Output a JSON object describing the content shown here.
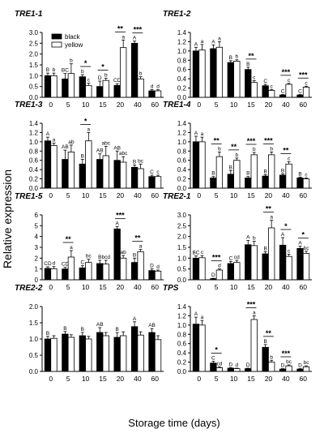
{
  "figure": {
    "ylabel": "Relative expression",
    "xlabel": "Storage time (days)",
    "legend": {
      "black": "black",
      "yellow": "yellow"
    }
  },
  "colors": {
    "black": "#000000",
    "yellow": "#ffffff",
    "axis": "#000000"
  },
  "chart_data": [
    {
      "type": "bar",
      "title": "TRE1-1",
      "categories": [
        "0",
        "5",
        "10",
        "15",
        "20",
        "40",
        "60"
      ],
      "ylim": [
        0,
        3.0
      ],
      "yticks": [
        "0.0",
        "0.5",
        "1.0",
        "1.5",
        "2.0",
        "2.5",
        "3.0"
      ],
      "series": [
        {
          "name": "black",
          "values": [
            1.0,
            0.85,
            0.95,
            0.5,
            0.55,
            2.5,
            0.3
          ],
          "errors": [
            0.12,
            0.25,
            0.1,
            0.25,
            0.08,
            0.1,
            0.05
          ],
          "letters": [
            "B",
            "BC",
            "b",
            "D",
            "CD",
            "A",
            "d"
          ]
        },
        {
          "name": "yellow",
          "values": [
            1.0,
            1.1,
            0.55,
            0.78,
            2.3,
            0.85,
            0.3
          ],
          "errors": [
            0.12,
            0.45,
            0.1,
            0.1,
            0.35,
            0.1,
            0.05
          ],
          "letters": [
            "b",
            "b",
            "c",
            "b",
            "a",
            "b",
            "d"
          ]
        }
      ],
      "stars": [
        "",
        "",
        "*",
        "*",
        "**",
        "***",
        ""
      ]
    },
    {
      "type": "bar",
      "title": "TRE1-2",
      "categories": [
        "0",
        "5",
        "10",
        "15",
        "20",
        "40",
        "60"
      ],
      "ylim": [
        0,
        1.4
      ],
      "yticks": [
        "0.0",
        "0.2",
        "0.4",
        "0.6",
        "0.8",
        "1.0",
        "1.2",
        "1.4"
      ],
      "series": [
        {
          "name": "black",
          "values": [
            1.0,
            1.05,
            0.75,
            0.6,
            0.25,
            0.05,
            0.05
          ],
          "errors": [
            0.08,
            0.08,
            0.04,
            0.05,
            0.03,
            0.01,
            0.01
          ],
          "letters": [
            "A",
            "A",
            "B",
            "B",
            "C",
            "C",
            "C"
          ]
        },
        {
          "name": "yellow",
          "values": [
            1.02,
            1.08,
            0.78,
            0.32,
            0.15,
            0.28,
            0.22
          ],
          "errors": [
            0.12,
            0.12,
            0.03,
            0.04,
            0.02,
            0.02,
            0.02
          ],
          "letters": [
            "a",
            "a",
            "b",
            "c",
            "c",
            "c",
            "c"
          ]
        }
      ],
      "stars": [
        "",
        "",
        "",
        "**",
        "",
        "***",
        "***"
      ]
    },
    {
      "type": "bar",
      "title": "TRE1-3",
      "categories": [
        "0",
        "5",
        "10",
        "15",
        "20",
        "40",
        "60"
      ],
      "ylim": [
        0,
        1.4
      ],
      "yticks": [
        "0.0",
        "0.2",
        "0.4",
        "0.6",
        "0.8",
        "1.0",
        "1.2",
        "1.4"
      ],
      "series": [
        {
          "name": "black",
          "values": [
            1.02,
            0.62,
            0.52,
            0.62,
            0.6,
            0.45,
            0.25
          ],
          "errors": [
            0.08,
            0.2,
            0.1,
            0.12,
            0.2,
            0.05,
            0.03
          ],
          "letters": [
            "A",
            "AB",
            "B",
            "AB",
            "AB",
            "B",
            "C"
          ]
        },
        {
          "name": "yellow",
          "values": [
            0.92,
            0.78,
            1.02,
            0.7,
            0.56,
            0.42,
            0.25
          ],
          "errors": [
            0.05,
            0.15,
            0.18,
            0.2,
            0.12,
            0.1,
            0.03
          ],
          "letters": [
            "a",
            "ab",
            "a",
            "abc",
            "abc",
            "bc",
            "c"
          ]
        }
      ],
      "stars": [
        "",
        "",
        "*",
        "",
        "",
        "",
        ""
      ]
    },
    {
      "type": "bar",
      "title": "TRE1-4",
      "categories": [
        "0",
        "5",
        "10",
        "15",
        "20",
        "40",
        "60"
      ],
      "ylim": [
        0,
        1.4
      ],
      "yticks": [
        "0.0",
        "0.2",
        "0.4",
        "0.6",
        "0.8",
        "1.0",
        "1.2",
        "1.4"
      ],
      "series": [
        {
          "name": "black",
          "values": [
            1.0,
            0.22,
            0.3,
            0.22,
            0.26,
            0.28,
            0.22
          ],
          "errors": [
            0.12,
            0.03,
            0.08,
            0.03,
            0.03,
            0.03,
            0.02
          ],
          "letters": [
            "A",
            "B",
            "B",
            "B",
            "B",
            "B",
            "B"
          ]
        },
        {
          "name": "yellow",
          "values": [
            1.0,
            0.68,
            0.6,
            0.72,
            0.72,
            0.52,
            0.2
          ],
          "errors": [
            0.1,
            0.1,
            0.05,
            0.05,
            0.06,
            0.05,
            0.02
          ],
          "letters": [
            "a",
            "b",
            "b",
            "b",
            "b",
            "c",
            "c"
          ]
        }
      ],
      "stars": [
        "",
        "**",
        "**",
        "***",
        "***",
        "**",
        ""
      ]
    },
    {
      "type": "bar",
      "title": "TRE1-5",
      "categories": [
        "0",
        "5",
        "10",
        "15",
        "20",
        "40",
        "60"
      ],
      "ylim": [
        0,
        6
      ],
      "yticks": [
        "0",
        "1",
        "2",
        "3",
        "4",
        "5",
        "6"
      ],
      "series": [
        {
          "name": "black",
          "values": [
            1.05,
            1.0,
            1.1,
            1.5,
            4.7,
            1.6,
            0.85
          ],
          "errors": [
            0.15,
            0.15,
            0.2,
            0.3,
            0.2,
            0.4,
            0.15
          ],
          "letters": [
            "CD",
            "CD",
            "C",
            "B",
            "A",
            "B",
            "D"
          ]
        },
        {
          "name": "yellow",
          "values": [
            1.02,
            2.1,
            1.6,
            1.45,
            2.0,
            2.6,
            0.8
          ],
          "errors": [
            0.2,
            0.6,
            0.3,
            0.35,
            0.25,
            0.2,
            0.1
          ],
          "letters": [
            "d",
            "a",
            "bc",
            "bcd",
            "ab",
            "a",
            "d"
          ]
        }
      ],
      "stars": [
        "",
        "**",
        "",
        "",
        "***",
        "**",
        ""
      ]
    },
    {
      "type": "bar",
      "title": "TRE2-1",
      "categories": [
        "0",
        "5",
        "10",
        "15",
        "20",
        "40",
        "60"
      ],
      "ylim": [
        0,
        3.0
      ],
      "yticks": [
        "0.0",
        "0.5",
        "1.0",
        "1.5",
        "2.0",
        "2.5",
        "3.0"
      ],
      "series": [
        {
          "name": "black",
          "values": [
            1.0,
            0.05,
            0.75,
            1.62,
            1.2,
            1.6,
            1.45
          ],
          "errors": [
            0.1,
            0.02,
            0.1,
            0.2,
            0.1,
            0.35,
            0.1
          ],
          "letters": [
            "BC",
            "D",
            "C",
            "A",
            "B",
            "A",
            "A"
          ]
        },
        {
          "name": "yellow",
          "values": [
            1.02,
            0.45,
            0.8,
            1.58,
            2.4,
            1.08,
            1.22
          ],
          "errors": [
            0.1,
            0.05,
            0.1,
            0.2,
            0.35,
            0.1,
            0.1
          ],
          "letters": [
            "c",
            "d",
            "cd",
            "b",
            "a",
            "c",
            "bc"
          ]
        }
      ],
      "stars": [
        "",
        "***",
        "",
        "",
        "**",
        "*",
        "*"
      ]
    },
    {
      "type": "bar",
      "title": "TRE2-2",
      "categories": [
        "0",
        "5",
        "10",
        "15",
        "20",
        "40",
        "60"
      ],
      "ylim": [
        0,
        2.0
      ],
      "yticks": [
        "0.0",
        "0.5",
        "1.0",
        "1.5",
        "2.0"
      ],
      "series": [
        {
          "name": "black",
          "values": [
            1.0,
            1.15,
            1.1,
            1.2,
            1.05,
            1.38,
            1.2
          ],
          "errors": [
            0.08,
            0.08,
            0.1,
            0.15,
            0.15,
            0.15,
            0.12
          ],
          "letters": [
            "B",
            "B",
            "B",
            "AB",
            "B",
            "A",
            "AB"
          ]
        },
        {
          "name": "yellow",
          "values": [
            1.02,
            1.05,
            1.0,
            1.1,
            1.1,
            1.12,
            0.98
          ],
          "errors": [
            0.08,
            0.08,
            0.08,
            0.1,
            0.12,
            0.1,
            0.12
          ],
          "letters": [
            "",
            "",
            "",
            "",
            "",
            "",
            ""
          ]
        }
      ],
      "stars": [
        "",
        "",
        "",
        "",
        "",
        "",
        ""
      ]
    },
    {
      "type": "bar",
      "title": "TPS",
      "categories": [
        "0",
        "5",
        "10",
        "15",
        "20",
        "40",
        "60"
      ],
      "ylim": [
        0,
        1.4
      ],
      "yticks": [
        "0.0",
        "0.2",
        "0.4",
        "0.6",
        "0.8",
        "1.0",
        "1.2",
        "1.4"
      ],
      "series": [
        {
          "name": "black",
          "values": [
            1.02,
            0.18,
            0.07,
            0.06,
            0.52,
            0.05,
            0.05
          ],
          "errors": [
            0.15,
            0.04,
            0.01,
            0.01,
            0.06,
            0.01,
            0.01
          ],
          "letters": [
            "A",
            "C",
            "D",
            "D",
            "B",
            "D",
            "D"
          ]
        },
        {
          "name": "yellow",
          "values": [
            1.0,
            0.08,
            0.06,
            1.12,
            0.2,
            0.12,
            0.1
          ],
          "errors": [
            0.1,
            0.02,
            0.01,
            0.08,
            0.04,
            0.02,
            0.02
          ],
          "letters": [
            "a",
            "cd",
            "d",
            "a",
            "b",
            "bc",
            "bc"
          ]
        }
      ],
      "stars": [
        "",
        "*",
        "",
        "***",
        "**",
        "***",
        ""
      ]
    }
  ]
}
